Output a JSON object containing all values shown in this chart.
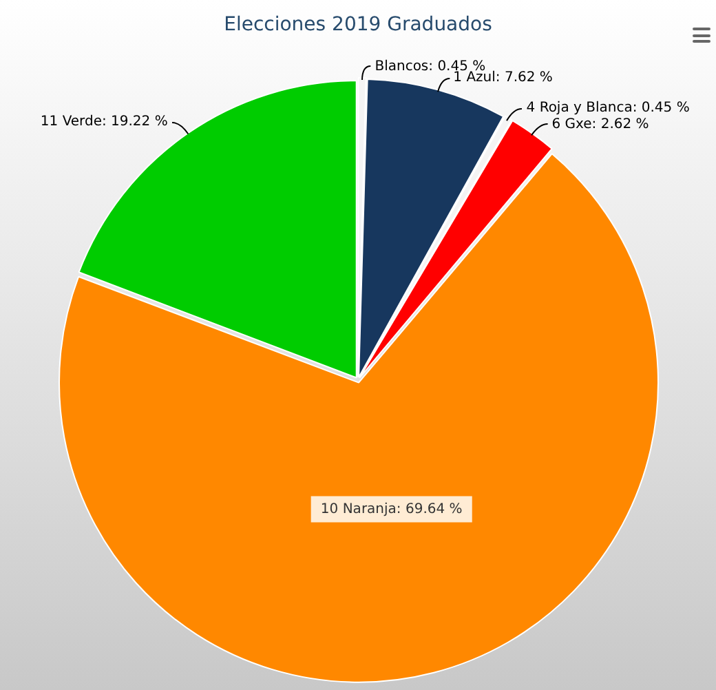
{
  "chart_data": {
    "type": "pie",
    "title": "Elecciones 2019 Graduados",
    "categories": [
      "Blancos",
      "1 Azul",
      "4 Roja y Blanca",
      "6 Gxe",
      "10 Naranja",
      "11 Verde"
    ],
    "values": [
      0.45,
      7.62,
      0.45,
      2.62,
      69.64,
      19.22
    ],
    "colors": [
      "#f4f4f4",
      "#17375e",
      "#f4f4f4",
      "#ff0000",
      "#ff8800",
      "#00cc00"
    ],
    "value_labels": [
      ": 0.45 %",
      ": 7.62 %",
      ": 0.45 %",
      ": 2.62 %",
      ": 69.64 %",
      ": 19.22 %"
    ],
    "legend": false
  }
}
